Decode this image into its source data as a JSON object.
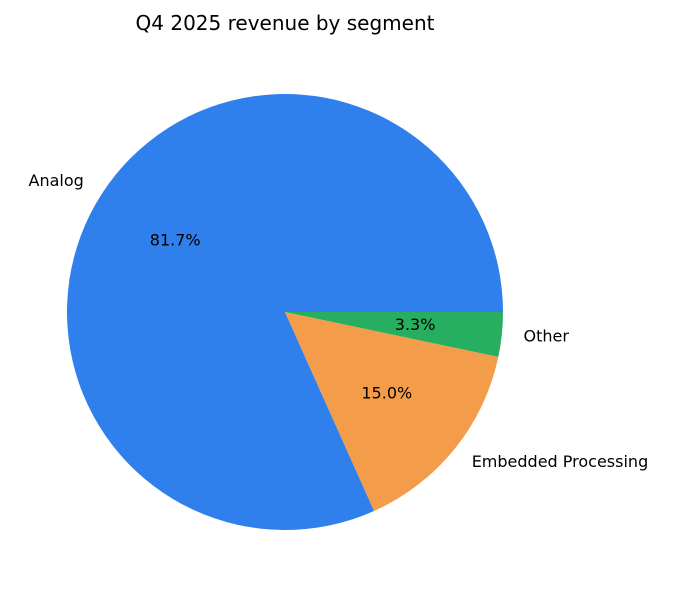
{
  "chart_data": {
    "type": "pie",
    "title": "Q4 2025 revenue by segment",
    "slices": [
      {
        "label": "Analog",
        "value": 81.7,
        "pct_label": "81.7%",
        "color": "#2f80ed"
      },
      {
        "label": "Embedded Processing",
        "value": 15.0,
        "pct_label": "15.0%",
        "color": "#f39c4a"
      },
      {
        "label": "Other",
        "value": 3.3,
        "pct_label": "3.3%",
        "color": "#27ae60"
      }
    ],
    "start_angle_deg": 0,
    "direction": "counterclockwise"
  }
}
